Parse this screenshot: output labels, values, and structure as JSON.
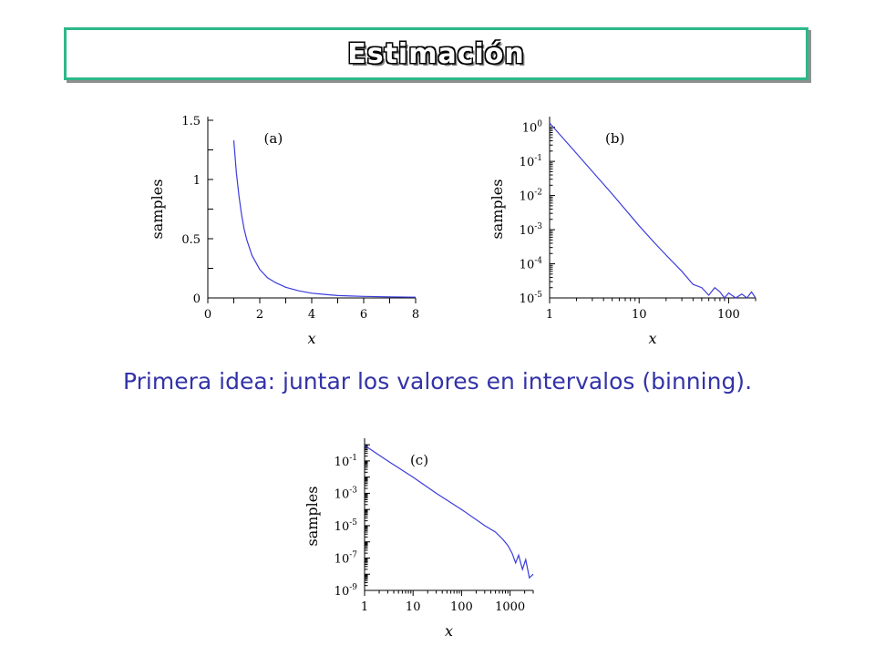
{
  "title": "Estimación",
  "caption": "Primera idea: juntar los valores en intervalos (binning).",
  "colors": {
    "title_border": "#2db888",
    "series": "#3b3bdc",
    "caption": "#3333a8"
  },
  "chart_data": [
    {
      "id": "a",
      "type": "line",
      "panel_label": "(a)",
      "xlabel": "x",
      "ylabel": "samples",
      "xscale": "linear",
      "yscale": "linear",
      "xlim": [
        0,
        8
      ],
      "ylim": [
        0,
        1.5
      ],
      "xticks": [
        0,
        2,
        4,
        6,
        8
      ],
      "yticks": [
        0,
        0.5,
        1,
        1.5
      ],
      "xtick_labels": [
        "0",
        "2",
        "4",
        "6",
        "8"
      ],
      "ytick_labels": [
        "0",
        "0.5",
        "1",
        "1.5"
      ],
      "grid": false,
      "series": [
        {
          "x": [
            1,
            1.1,
            1.2,
            1.3,
            1.4,
            1.5,
            1.7,
            2,
            2.3,
            2.6,
            3,
            3.5,
            4,
            4.5,
            5,
            6,
            7,
            8
          ],
          "y": [
            1.33,
            1.06,
            0.86,
            0.7,
            0.58,
            0.49,
            0.36,
            0.24,
            0.17,
            0.13,
            0.09,
            0.06,
            0.04,
            0.03,
            0.02,
            0.013,
            0.009,
            0.006
          ]
        }
      ]
    },
    {
      "id": "b",
      "type": "line",
      "panel_label": "(b)",
      "xlabel": "x",
      "ylabel": "samples",
      "xscale": "log",
      "yscale": "log",
      "xlim": [
        1,
        200
      ],
      "ylim": [
        1e-05,
        1.6
      ],
      "xticks": [
        1,
        10,
        100
      ],
      "xtick_labels": [
        "1",
        "10",
        "100"
      ],
      "yticks": [
        1e-05,
        0.0001,
        0.001,
        0.01,
        0.1,
        1
      ],
      "ytick_base": [
        "10",
        "10",
        "10",
        "10",
        "10",
        "10"
      ],
      "ytick_exp": [
        "-5",
        "-4",
        "-3",
        "-2",
        "-1",
        "0"
      ],
      "grid": false,
      "series": [
        {
          "x": [
            1,
            2,
            5,
            10,
            15,
            20,
            30,
            40,
            50,
            60,
            70,
            80,
            90,
            100,
            120,
            140,
            160,
            180,
            200
          ],
          "y": [
            1.33,
            0.17,
            0.011,
            0.0013,
            0.0004,
            0.00018,
            6e-05,
            2.5e-05,
            2e-05,
            1.2e-05,
            2e-05,
            1.5e-05,
            1e-05,
            1.4e-05,
            1e-05,
            1.3e-05,
            1e-05,
            1.5e-05,
            1e-05
          ]
        }
      ]
    },
    {
      "id": "c",
      "type": "line",
      "panel_label": "(c)",
      "xlabel": "x",
      "ylabel": "samples",
      "xscale": "log",
      "yscale": "log",
      "xlim": [
        1,
        3000
      ],
      "ylim": [
        1e-09,
        1.5
      ],
      "xticks": [
        1,
        10,
        100,
        1000
      ],
      "xtick_labels": [
        "1",
        "10",
        "100",
        "1000"
      ],
      "yticks": [
        1e-09,
        1e-07,
        1e-05,
        0.001,
        0.1
      ],
      "ytick_base": [
        "10",
        "10",
        "10",
        "10",
        "10"
      ],
      "ytick_exp": [
        "-9",
        "-7",
        "-5",
        "-3",
        "-1"
      ],
      "grid": false,
      "series": [
        {
          "x": [
            1,
            3,
            10,
            30,
            100,
            300,
            500,
            700,
            900,
            1100,
            1300,
            1500,
            1800,
            2100,
            2500,
            3000
          ],
          "y": [
            0.9,
            0.1,
            0.01,
            0.001,
            0.0001,
            1e-05,
            4e-06,
            1.5e-06,
            6e-07,
            2e-07,
            5e-08,
            1.5e-07,
            2e-08,
            8e-08,
            6e-09,
            1e-08
          ]
        }
      ]
    }
  ]
}
